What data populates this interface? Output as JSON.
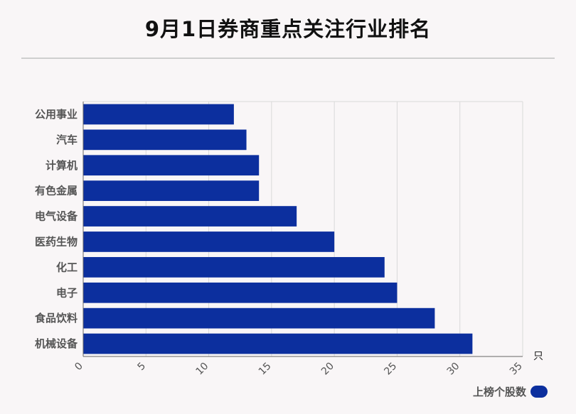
{
  "title": "9月1日券商重点关注行业排名",
  "colors": {
    "bar": "#0c2f9e",
    "grid": "#d9d9d9",
    "axis": "#666666",
    "label": "#555555"
  },
  "chart_data": {
    "type": "bar",
    "orientation": "horizontal",
    "title": "9月1日券商重点关注行业排名",
    "categories": [
      "公用事业",
      "汽车",
      "计算机",
      "有色金属",
      "电气设备",
      "医药生物",
      "化工",
      "电子",
      "食品饮料",
      "机械设备"
    ],
    "series": [
      {
        "name": "上榜个股数",
        "values": [
          12,
          13,
          14,
          14,
          17,
          20,
          24,
          25,
          28,
          31
        ]
      }
    ],
    "xlim": [
      0,
      35
    ],
    "xticks": [
      "0",
      "5",
      "10",
      "15",
      "20",
      "25",
      "30",
      "35"
    ],
    "xunit": "只",
    "grid": true,
    "legend_position": "bottom-right"
  }
}
